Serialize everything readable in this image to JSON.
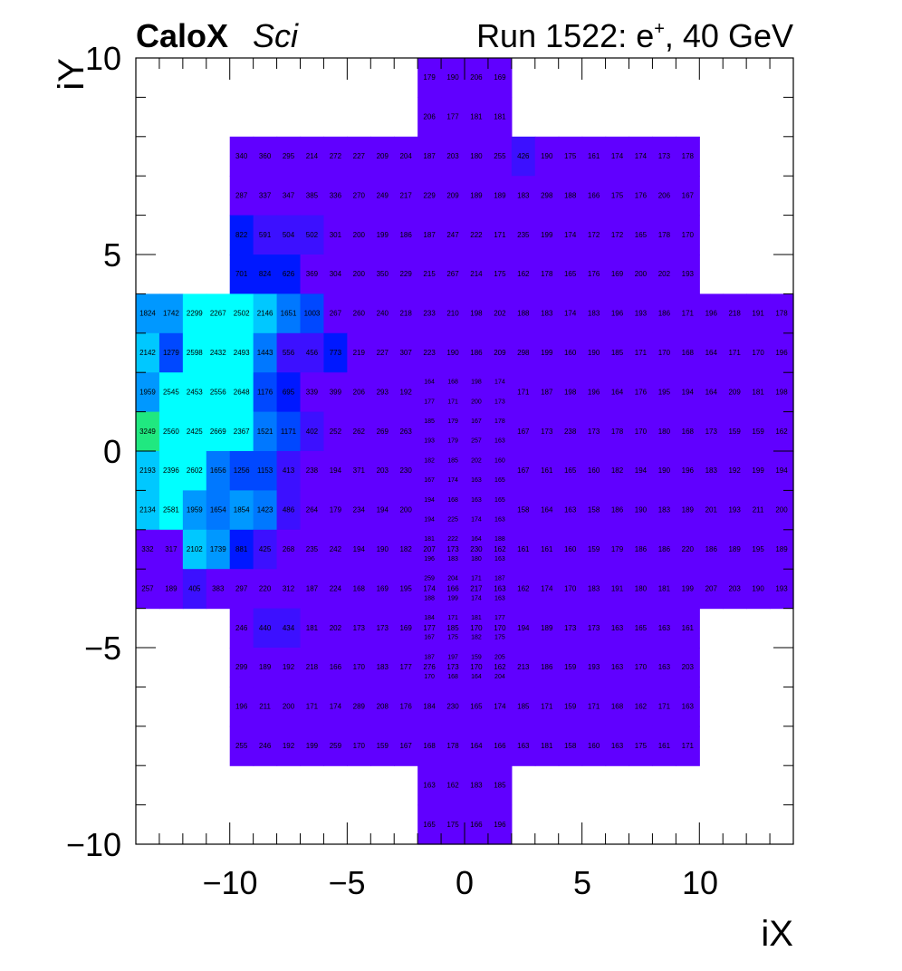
{
  "header": {
    "brand": "CaloX",
    "brand_sub": "Sci",
    "run_prefix": "Run 1522: e",
    "run_sup": "+",
    "run_suffix": ", 40 GeV"
  },
  "colors": {
    "low": "#6000ff",
    "blue": "#0018ff",
    "mid_blue": "#1060ff",
    "azure": "#0090ff",
    "light": "#00b8ff",
    "cyan": "#00ffff",
    "green": "#20e880"
  },
  "chart_data": {
    "type": "heatmap",
    "xlabel": "iX",
    "ylabel": "iY",
    "xlim": [
      -14,
      14
    ],
    "ylim": [
      -10,
      10
    ],
    "x_ticks": [
      -10,
      -5,
      0,
      5,
      10
    ],
    "y_ticks": [
      -10,
      -5,
      0,
      5,
      10
    ],
    "x_tick_labels": [
      "−10",
      "−5",
      "0",
      "5",
      "10"
    ],
    "y_tick_labels": [
      "−10",
      "−5",
      "0",
      "5",
      "10"
    ],
    "grid": false,
    "color_scale": [
      {
        "min": 0,
        "color": "#6000ff"
      },
      {
        "min": 400,
        "color": "#3c10ff"
      },
      {
        "min": 600,
        "color": "#0018ff"
      },
      {
        "min": 1000,
        "color": "#0048ff"
      },
      {
        "min": 1400,
        "color": "#0078ff"
      },
      {
        "min": 1700,
        "color": "#0098ff"
      },
      {
        "min": 2000,
        "color": "#00c8ff"
      },
      {
        "min": 2250,
        "color": "#00ffff"
      },
      {
        "min": 3000,
        "color": "#20e880"
      }
    ],
    "rows": [
      {
        "y": 9,
        "x_start": -2,
        "values": [
          179,
          190,
          206,
          169
        ]
      },
      {
        "y": 8,
        "x_start": -2,
        "values": [
          206,
          177,
          181,
          181
        ]
      },
      {
        "y": 7,
        "x_start": -10,
        "values": [
          340,
          360,
          295,
          214,
          272,
          227,
          209,
          204,
          187,
          203,
          180,
          255,
          426,
          190,
          175,
          161,
          174,
          174,
          173,
          178
        ]
      },
      {
        "y": 6,
        "x_start": -10,
        "values": [
          287,
          337,
          347,
          385,
          336,
          270,
          249,
          217,
          229,
          209,
          189,
          189,
          183,
          298,
          188,
          166,
          175,
          176,
          206,
          167
        ]
      },
      {
        "y": 5,
        "x_start": -10,
        "values": [
          822,
          591,
          504,
          502,
          301,
          200,
          199,
          186,
          187,
          247,
          222,
          171,
          235,
          199,
          174,
          172,
          172,
          165,
          178,
          170
        ]
      },
      {
        "y": 4,
        "x_start": -10,
        "values": [
          701,
          824,
          626,
          369,
          304,
          200,
          350,
          229,
          215,
          267,
          214,
          175,
          162,
          178,
          165,
          176,
          169,
          200,
          202,
          193
        ]
      },
      {
        "y": 3,
        "x_start": -14,
        "values": [
          1824,
          1742,
          2299,
          2267,
          2502,
          2146,
          1651,
          1003,
          267,
          260,
          240,
          218,
          233,
          210,
          198,
          202,
          188,
          183,
          174,
          183,
          196,
          193,
          186,
          171,
          196,
          218,
          191,
          178
        ]
      },
      {
        "y": 2,
        "x_start": -14,
        "values": [
          2142,
          1279,
          2598,
          2432,
          2493,
          1443,
          556,
          456,
          773,
          219,
          227,
          307,
          223,
          190,
          186,
          209,
          298,
          199,
          160,
          190,
          185,
          171,
          170,
          168,
          164,
          171,
          170,
          196
        ]
      },
      {
        "y": 1,
        "x_start": -14,
        "values": [
          1959,
          2545,
          2453,
          2556,
          2648,
          1176,
          695,
          339,
          399,
          206,
          293,
          192,
          null,
          null,
          null,
          null,
          171,
          187,
          198,
          196,
          164,
          176,
          195,
          194,
          164,
          209,
          181,
          198
        ]
      },
      {
        "y": 0,
        "x_start": -14,
        "values": [
          3249,
          2560,
          2425,
          2669,
          2367,
          1521,
          1171,
          402,
          252,
          262,
          269,
          263,
          null,
          null,
          null,
          null,
          167,
          173,
          238,
          173,
          178,
          170,
          180,
          168,
          173,
          159,
          159,
          162
        ]
      },
      {
        "y": -1,
        "x_start": -14,
        "values": [
          2193,
          2396,
          2602,
          1656,
          1256,
          1153,
          413,
          238,
          194,
          371,
          203,
          230,
          null,
          null,
          null,
          null,
          167,
          161,
          165,
          160,
          182,
          194,
          190,
          196,
          183,
          192,
          199,
          194
        ]
      },
      {
        "y": -2,
        "x_start": -14,
        "values": [
          2134,
          2581,
          1959,
          1654,
          1854,
          1423,
          486,
          264,
          179,
          234,
          194,
          200,
          null,
          null,
          null,
          null,
          158,
          164,
          163,
          158,
          186,
          190,
          183,
          189,
          201,
          193,
          211,
          200
        ]
      },
      {
        "y": -3,
        "x_start": -14,
        "values": [
          332,
          317,
          2102,
          1739,
          881,
          425,
          268,
          235,
          242,
          194,
          190,
          182,
          207,
          173,
          230,
          162,
          161,
          161,
          160,
          159,
          179,
          186,
          186,
          220,
          186,
          189,
          195,
          189
        ]
      },
      {
        "y": -4,
        "x_start": -14,
        "values": [
          257,
          189,
          405,
          383,
          297,
          220,
          312,
          187,
          224,
          168,
          169,
          195,
          174,
          166,
          217,
          163,
          162,
          174,
          170,
          183,
          191,
          180,
          181,
          199,
          207,
          203,
          190,
          193
        ]
      },
      {
        "y": -5,
        "x_start": -10,
        "values": [
          246,
          440,
          434,
          181,
          202,
          173,
          173,
          169,
          177,
          185,
          170,
          170,
          194,
          189,
          173,
          173,
          163,
          165,
          163,
          161
        ]
      },
      {
        "y": -6,
        "x_start": -10,
        "values": [
          299,
          189,
          192,
          218,
          166,
          170,
          183,
          177,
          276,
          173,
          170,
          162,
          213,
          186,
          159,
          193,
          163,
          170,
          163,
          203
        ]
      },
      {
        "y": -7,
        "x_start": -10,
        "values": [
          196,
          211,
          200,
          171,
          174,
          289,
          208,
          176,
          184,
          230,
          165,
          174,
          185,
          171,
          159,
          171,
          168,
          162,
          171,
          163
        ]
      },
      {
        "y": -8,
        "x_start": -10,
        "values": [
          255,
          246,
          192,
          199,
          259,
          170,
          159,
          167,
          168,
          178,
          164,
          166,
          163,
          181,
          158,
          160,
          163,
          175,
          161,
          171
        ]
      },
      {
        "y": -9,
        "x_start": -2,
        "values": [
          163,
          162,
          183,
          185
        ]
      },
      {
        "y": -10,
        "x_start": -2,
        "values": [
          165,
          175,
          166,
          196
        ]
      }
    ],
    "fine_rows": [
      {
        "y": 1.75,
        "x_start": -2,
        "values": [
          164,
          168,
          198,
          174
        ]
      },
      {
        "y": 1.25,
        "x_start": -2,
        "values": [
          177,
          171,
          200,
          173
        ]
      },
      {
        "y": 0.75,
        "x_start": -2,
        "values": [
          185,
          179,
          167,
          178
        ]
      },
      {
        "y": 0.25,
        "x_start": -2,
        "values": [
          193,
          179,
          257,
          163
        ]
      },
      {
        "y": -0.25,
        "x_start": -2,
        "values": [
          182,
          185,
          202,
          160
        ]
      },
      {
        "y": -0.75,
        "x_start": -2,
        "values": [
          167,
          174,
          163,
          165
        ]
      },
      {
        "y": -1.25,
        "x_start": -2,
        "values": [
          194,
          168,
          163,
          165
        ]
      },
      {
        "y": -1.75,
        "x_start": -2,
        "values": [
          194,
          225,
          174,
          163
        ]
      },
      {
        "y": -2.25,
        "x_start": -2,
        "values": [
          181,
          222,
          164,
          188
        ]
      },
      {
        "y": -2.75,
        "x_start": -2,
        "values": [
          196,
          183,
          180,
          163
        ]
      },
      {
        "y": -3.25,
        "x_start": -2,
        "values": [
          259,
          204,
          171,
          187
        ]
      },
      {
        "y": -3.75,
        "x_start": -2,
        "values": [
          188,
          199,
          174,
          163
        ]
      },
      {
        "y": -4.25,
        "x_start": -2,
        "values": [
          184,
          171,
          181,
          177
        ]
      },
      {
        "y": -4.75,
        "x_start": -2,
        "values": [
          167,
          175,
          182,
          175
        ]
      },
      {
        "y": -5.25,
        "x_start": -2,
        "values": [
          187,
          197,
          159,
          205
        ]
      },
      {
        "y": -5.75,
        "x_start": -2,
        "values": [
          170,
          168,
          164,
          204
        ]
      }
    ]
  }
}
